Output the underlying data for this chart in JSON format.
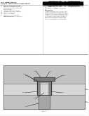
{
  "page_bg": "#f8f8f8",
  "barcode_color": "#000000",
  "header_bg": "#ffffff",
  "diagram_bg": "#e8e8e8",
  "sub_color": "#c0c0c0",
  "plug_color": "#a8a8a8",
  "diel_color": "#d4d4d4",
  "ring_color": "#909090",
  "dark_gray": "#787878",
  "mid_gray": "#b0b0b0",
  "text_color": "#333333",
  "line_color": "#555555",
  "fig_width": 1.28,
  "fig_height": 1.65,
  "dpi": 100
}
